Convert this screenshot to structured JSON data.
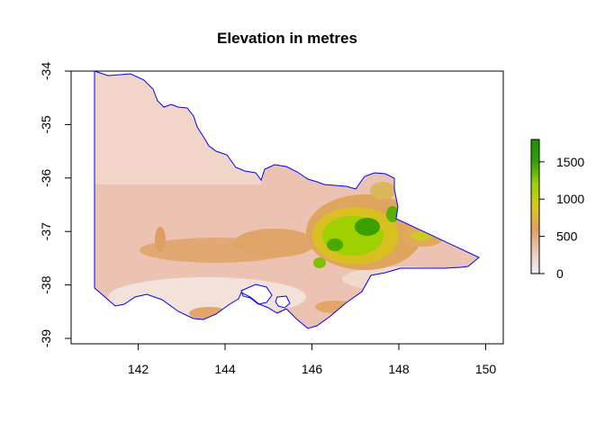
{
  "map": {
    "title": "Elevation in metres",
    "boundary_color": "#0000ff",
    "x_axis": {
      "ticks": [
        142,
        144,
        146,
        148,
        150
      ],
      "labels": [
        "142",
        "144",
        "146",
        "148",
        "150"
      ]
    },
    "y_axis": {
      "ticks": [
        -34,
        -35,
        -36,
        -37,
        -38,
        -39
      ],
      "labels": [
        "-34",
        "-35",
        "-36",
        "-37",
        "-38",
        "-39"
      ]
    },
    "legend": {
      "ticks": [
        0,
        500,
        1000,
        1500
      ],
      "labels": [
        "0",
        "500",
        "1000",
        "1500"
      ],
      "range": [
        0,
        1800
      ],
      "colors": [
        "#f2f2f2",
        "#eec7b4",
        "#e3a060",
        "#d8c81a",
        "#9fd200",
        "#33a000",
        "#229000"
      ]
    }
  }
}
